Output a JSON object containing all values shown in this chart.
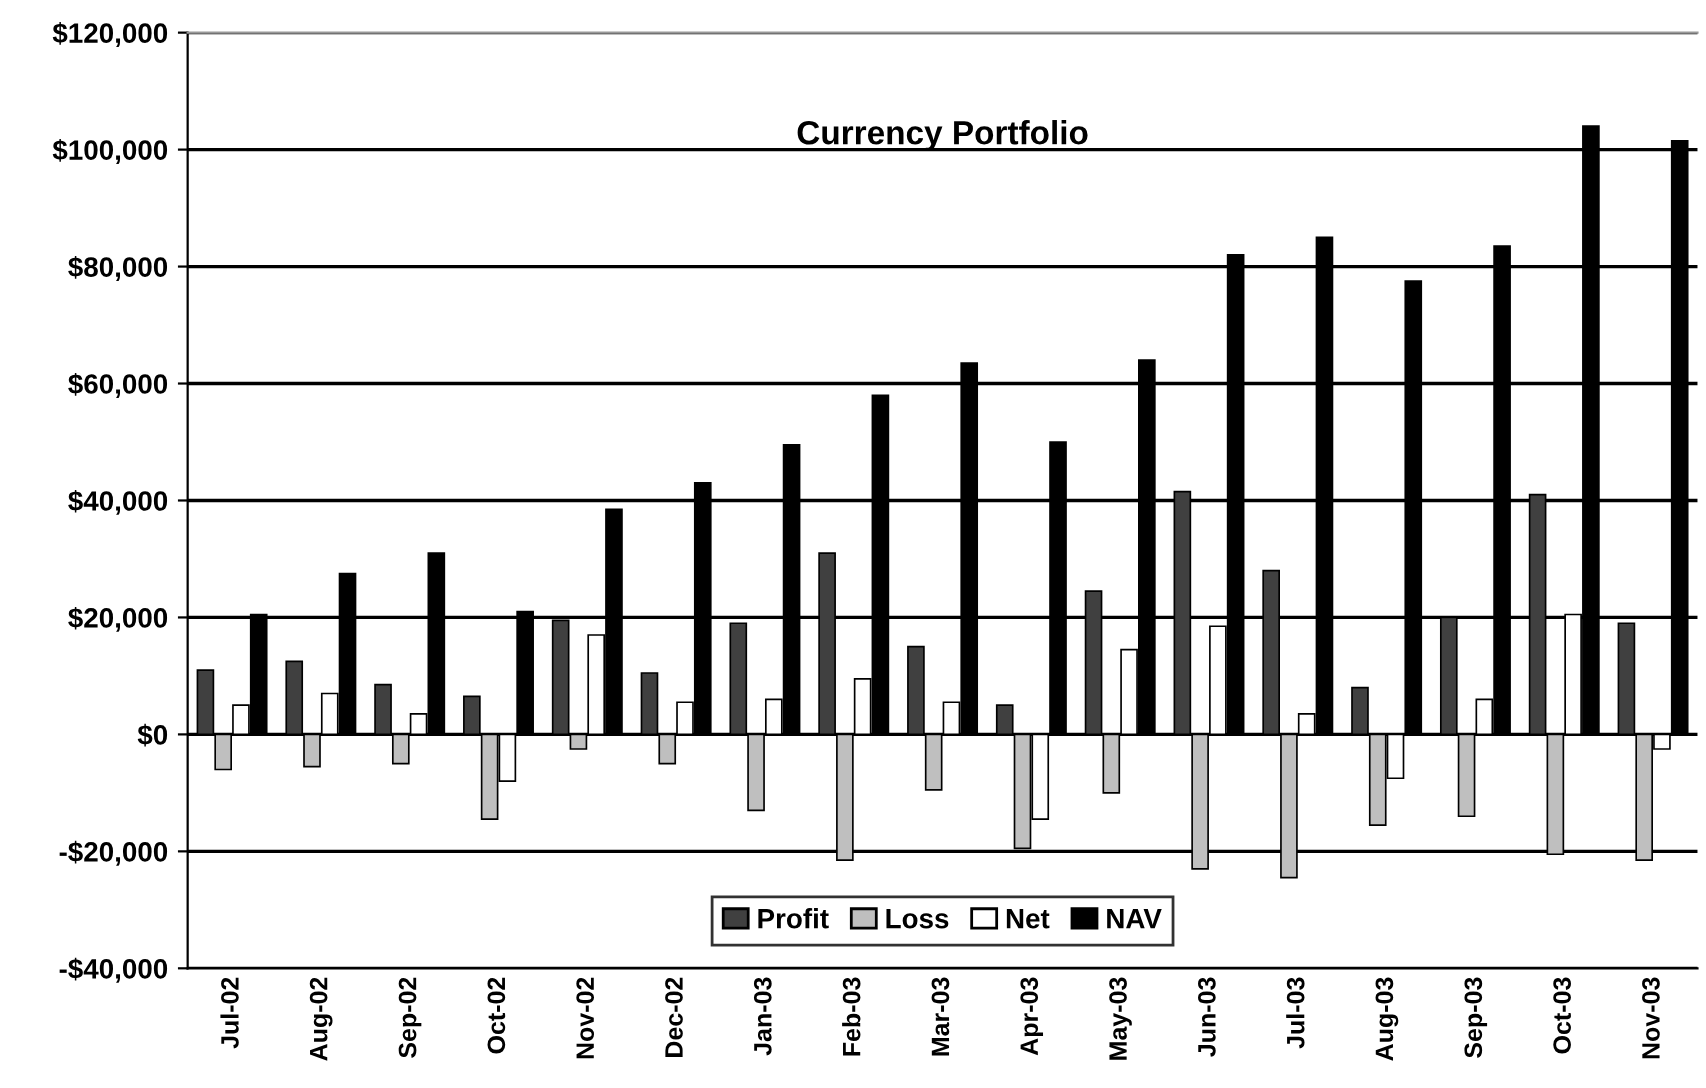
{
  "chart_data": {
    "type": "bar",
    "title": "Currency Portfolio",
    "categories": [
      "Jul-02",
      "Aug-02",
      "Sep-02",
      "Oct-02",
      "Nov-02",
      "Dec-02",
      "Jan-03",
      "Feb-03",
      "Mar-03",
      "Apr-03",
      "May-03",
      "Jun-03",
      "Jul-03",
      "Aug-03",
      "Sep-03",
      "Oct-03",
      "Nov-03"
    ],
    "series": [
      {
        "name": "Profit",
        "color": "#404040",
        "values": [
          11000,
          12500,
          8500,
          6500,
          19500,
          10500,
          19000,
          31000,
          15000,
          5000,
          24500,
          41500,
          28000,
          8000,
          20000,
          41000,
          19000
        ]
      },
      {
        "name": "Loss",
        "color": "#bfbfbf",
        "values": [
          -6000,
          -5500,
          -5000,
          -14500,
          -2500,
          -5000,
          -13000,
          -21500,
          -9500,
          -19500,
          -10000,
          -23000,
          -24500,
          -15500,
          -14000,
          -20500,
          -21500
        ]
      },
      {
        "name": "Net",
        "color": "#ffffff",
        "values": [
          5000,
          7000,
          3500,
          -8000,
          17000,
          5500,
          6000,
          9500,
          5500,
          -14500,
          14500,
          18500,
          3500,
          -7500,
          6000,
          20500,
          -2500
        ]
      },
      {
        "name": "NAV",
        "color": "#000000",
        "values": [
          20500,
          27500,
          31000,
          21000,
          38500,
          43000,
          49500,
          58000,
          63500,
          50000,
          64000,
          82000,
          85000,
          77500,
          83500,
          104000,
          101500
        ]
      }
    ],
    "ylim": [
      -40000,
      120000
    ],
    "yticks": [
      {
        "value": -40000,
        "label": "-$40,000"
      },
      {
        "value": -20000,
        "label": "-$20,000"
      },
      {
        "value": 0,
        "label": "$0"
      },
      {
        "value": 20000,
        "label": "$20,000"
      },
      {
        "value": 40000,
        "label": "$40,000"
      },
      {
        "value": 60000,
        "label": "$60,000"
      },
      {
        "value": 80000,
        "label": "$80,000"
      },
      {
        "value": 100000,
        "label": "$100,000"
      },
      {
        "value": 120000,
        "label": "$120,000"
      }
    ],
    "grid": "y",
    "legend": "bottom"
  }
}
